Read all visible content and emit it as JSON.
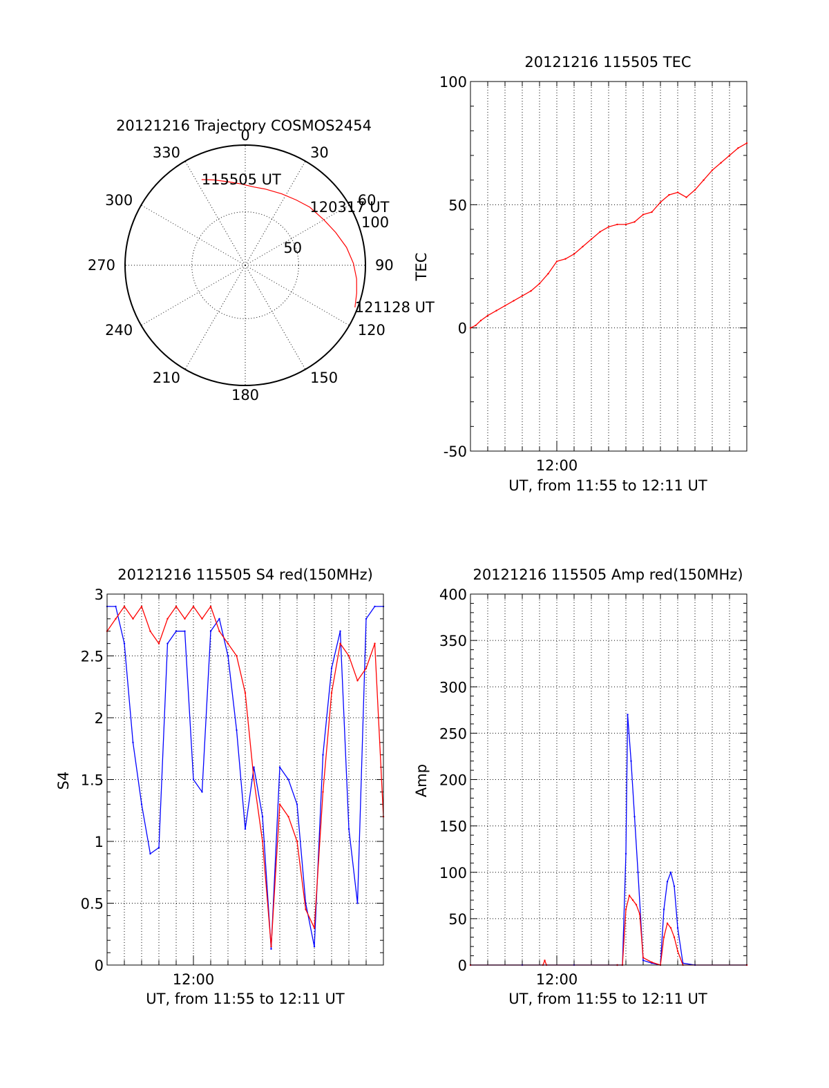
{
  "colors": {
    "red": "#ff0000",
    "blue": "#0000ff",
    "axis": "#000000"
  },
  "chart_data": [
    {
      "type": "scatter",
      "subtype": "polar-trajectory",
      "title": "20121216 Trajectory COSMOS2454",
      "azimuth_labels": [
        "0",
        "30",
        "60",
        "90",
        "120",
        "150",
        "180",
        "210",
        "240",
        "270",
        "300",
        "330"
      ],
      "radial_ticks": [
        {
          "label": "50",
          "elevation": 50
        },
        {
          "label": "100",
          "elevation": 0
        }
      ],
      "series": [
        {
          "color": "red",
          "points": [
            {
              "az": 333,
              "el": 18
            },
            {
              "az": 340,
              "el": 22
            },
            {
              "az": 348,
              "el": 26
            },
            {
              "az": 357,
              "el": 29
            },
            {
              "az": 6,
              "el": 31
            },
            {
              "az": 15,
              "el": 31
            },
            {
              "az": 27,
              "el": 30
            },
            {
              "az": 38,
              "el": 28
            },
            {
              "az": 48,
              "el": 25
            },
            {
              "az": 60,
              "el": 22
            },
            {
              "az": 70,
              "el": 18
            },
            {
              "az": 80,
              "el": 13
            },
            {
              "az": 89,
              "el": 9
            },
            {
              "az": 97,
              "el": 6
            },
            {
              "az": 104,
              "el": 4
            },
            {
              "az": 111,
              "el": 2
            }
          ]
        }
      ],
      "annotations": [
        {
          "text": "115505 UT",
          "az": 333,
          "el": 18
        },
        {
          "text": "120317 UT",
          "az": 48,
          "el": 25
        },
        {
          "text": "121128 UT",
          "az": 111,
          "el": 2
        }
      ]
    },
    {
      "type": "line",
      "title": "20121216 115505 TEC",
      "xlabel": "UT, from 11:55 to 12:11 UT",
      "ylabel": "TEC",
      "xlim": [
        715,
        731
      ],
      "ylim": [
        -50,
        100
      ],
      "yticks": [
        -50,
        0,
        50,
        100
      ],
      "xtick_labels": [
        {
          "value": 720,
          "label": "12:00"
        }
      ],
      "x_unit": "minutes after 00:00 UT",
      "series": [
        {
          "color": "red",
          "x": [
            715.0,
            715.3,
            715.6,
            716.0,
            716.5,
            717.0,
            717.5,
            718.0,
            718.5,
            719.0,
            719.5,
            720.0,
            720.5,
            721.0,
            721.5,
            722.0,
            722.5,
            723.0,
            723.5,
            724.0,
            724.5,
            725.0,
            725.5,
            726.0,
            726.5,
            727.0,
            727.5,
            728.0,
            728.5,
            729.0,
            729.5,
            730.0,
            730.5,
            731.0
          ],
          "values": [
            0,
            1,
            3,
            5,
            7,
            9,
            11,
            13,
            15,
            18,
            22,
            27,
            28,
            30,
            33,
            36,
            39,
            41,
            42,
            42,
            43,
            46,
            47,
            51,
            54,
            55,
            53,
            56,
            60,
            64,
            67,
            70,
            73,
            75
          ]
        }
      ]
    },
    {
      "type": "line",
      "title": "20121216 115505 S4 red(150MHz)",
      "xlabel": "UT, from 11:55 to 12:11 UT",
      "ylabel": "S4",
      "xlim": [
        715,
        731
      ],
      "ylim": [
        0,
        3
      ],
      "yticks": [
        0,
        0.5,
        1,
        1.5,
        2,
        2.5,
        3
      ],
      "ytick_labels": [
        "0",
        "0.5",
        "1",
        "1.5",
        "2",
        "2.5",
        "3"
      ],
      "xtick_labels": [
        {
          "value": 720,
          "label": "12:00"
        }
      ],
      "x_unit": "minutes after 00:00 UT",
      "series": [
        {
          "color": "blue",
          "x": [
            715.0,
            715.5,
            716.0,
            716.5,
            717.0,
            717.5,
            718.0,
            718.5,
            719.0,
            719.5,
            720.0,
            720.5,
            721.0,
            721.5,
            722.0,
            722.5,
            723.0,
            723.5,
            724.0,
            724.5,
            725.0,
            725.5,
            726.0,
            726.5,
            727.0,
            727.5,
            728.0,
            728.5,
            729.0,
            729.5,
            730.0,
            730.5,
            731.0
          ],
          "values": [
            2.9,
            2.9,
            2.6,
            1.8,
            1.3,
            0.9,
            0.95,
            2.6,
            2.7,
            2.7,
            1.5,
            1.4,
            2.7,
            2.8,
            2.5,
            1.9,
            1.1,
            1.6,
            1.2,
            0.13,
            1.6,
            1.5,
            1.3,
            0.5,
            0.15,
            1.7,
            2.4,
            2.7,
            1.1,
            0.5,
            2.8,
            2.9,
            2.9
          ]
        },
        {
          "color": "red",
          "x": [
            715.0,
            715.5,
            716.0,
            716.5,
            717.0,
            717.5,
            718.0,
            718.5,
            719.0,
            719.5,
            720.0,
            720.5,
            721.0,
            721.5,
            722.0,
            722.5,
            723.0,
            723.5,
            724.0,
            724.5,
            725.0,
            725.5,
            726.0,
            726.5,
            727.0,
            727.5,
            728.0,
            728.5,
            729.0,
            729.5,
            730.0,
            730.5,
            731.0
          ],
          "values": [
            2.7,
            2.8,
            2.9,
            2.8,
            2.9,
            2.7,
            2.6,
            2.8,
            2.9,
            2.8,
            2.9,
            2.8,
            2.9,
            2.7,
            2.6,
            2.5,
            2.2,
            1.5,
            1.0,
            0.15,
            1.3,
            1.2,
            1.0,
            0.45,
            0.3,
            1.4,
            2.2,
            2.6,
            2.5,
            2.3,
            2.4,
            2.6,
            1.2
          ]
        }
      ]
    },
    {
      "type": "line",
      "title": "20121216 115505 Amp red(150MHz)",
      "xlabel": "UT, from 11:55 to 12:11 UT",
      "ylabel": "Amp",
      "xlim": [
        715,
        731
      ],
      "ylim": [
        0,
        400
      ],
      "yticks": [
        0,
        50,
        100,
        150,
        200,
        250,
        300,
        350,
        400
      ],
      "xtick_labels": [
        {
          "value": 720,
          "label": "12:00"
        }
      ],
      "x_unit": "minutes after 00:00 UT",
      "series": [
        {
          "color": "blue",
          "x": [
            715.0,
            718.0,
            721.0,
            723.5,
            723.8,
            724.0,
            724.1,
            724.3,
            724.5,
            724.7,
            725.0,
            725.5,
            726.0,
            726.2,
            726.4,
            726.6,
            726.8,
            727.0,
            727.3,
            728.0,
            731.0
          ],
          "values": [
            0,
            0,
            0,
            0,
            0,
            120,
            270,
            220,
            160,
            100,
            5,
            2,
            0,
            60,
            90,
            100,
            85,
            40,
            2,
            0,
            0
          ]
        },
        {
          "color": "red",
          "x": [
            715.0,
            719.2,
            719.3,
            719.4,
            723.5,
            723.8,
            724.0,
            724.2,
            724.4,
            724.6,
            724.8,
            725.0,
            725.5,
            726.0,
            726.2,
            726.4,
            726.6,
            726.8,
            727.0,
            727.3,
            731.0
          ],
          "values": [
            0,
            0,
            5,
            0,
            0,
            0,
            60,
            75,
            70,
            65,
            55,
            8,
            3,
            0,
            30,
            45,
            40,
            30,
            15,
            0,
            0
          ]
        }
      ]
    }
  ]
}
